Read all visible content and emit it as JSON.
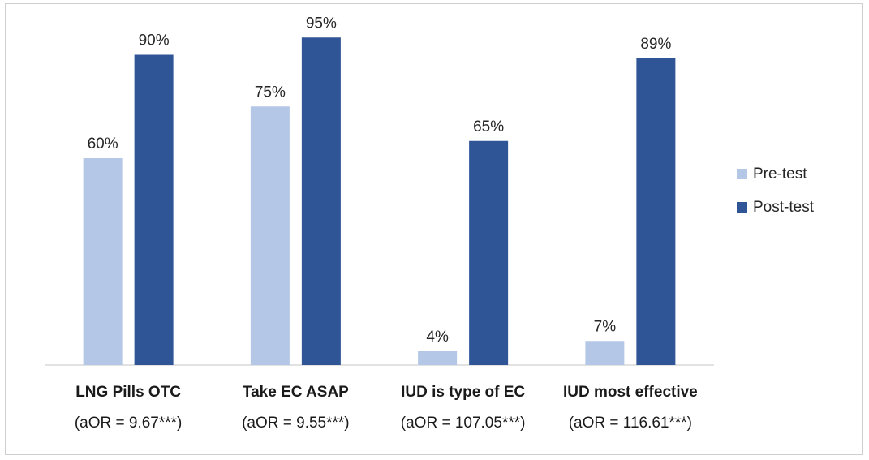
{
  "chart_data": {
    "type": "bar",
    "categories": [
      "LNG Pills OTC",
      "Take EC ASAP",
      "IUD is type of EC",
      "IUD most effective"
    ],
    "category_notes": [
      "(aOR = 9.67***)",
      "(aOR = 9.55***)",
      "(aOR = 107.05***)",
      "(aOR = 116.61***)"
    ],
    "series": [
      {
        "name": "Pre-test",
        "color": "#b4c7e7",
        "values": [
          60,
          75,
          4,
          7
        ],
        "labels": [
          "60%",
          "75%",
          "4%",
          "7%"
        ]
      },
      {
        "name": "Post-test",
        "color": "#2f5597",
        "values": [
          90,
          95,
          65,
          89
        ],
        "labels": [
          "90%",
          "95%",
          "65%",
          "89%"
        ]
      }
    ],
    "ylim": [
      0,
      100
    ],
    "grid": false,
    "legend_position": "right",
    "axis_line_color": "#d9d9d9"
  }
}
